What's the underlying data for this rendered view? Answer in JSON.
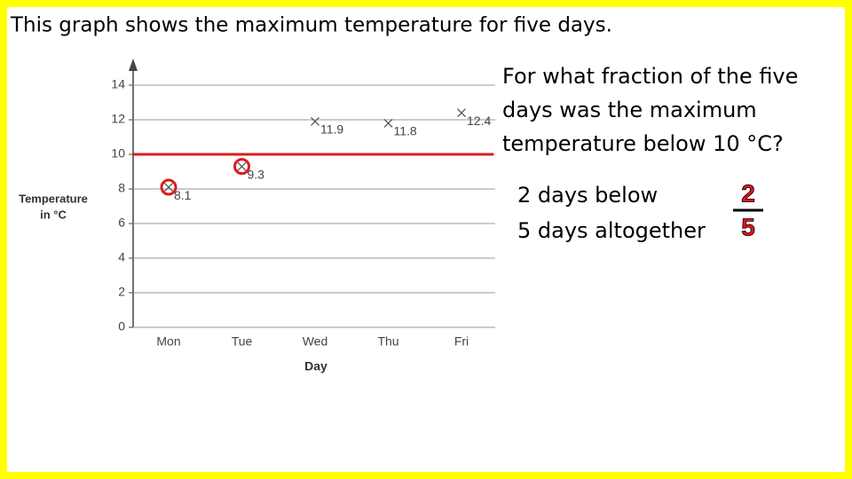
{
  "slide_title": "This graph shows the maximum temperature for five days.",
  "question": [
    "For what fraction of the five",
    "days was the maximum",
    "temperature below 10 °C?"
  ],
  "answer": [
    "2 days below",
    "5 days altogether"
  ],
  "fraction": {
    "numerator": 2,
    "denominator": 5,
    "color": "#e8101a"
  },
  "chart_data": {
    "type": "scatter",
    "categories": [
      "Mon",
      "Tue",
      "Wed",
      "Thu",
      "Fri"
    ],
    "values": [
      8.1,
      9.3,
      11.9,
      11.8,
      12.4
    ],
    "color": "#555555",
    "y_label": [
      "Temperature",
      "in °C"
    ],
    "x_label": "Day",
    "ylim": [
      0,
      14
    ],
    "yticks": [
      0,
      2,
      4,
      6,
      8,
      10,
      12,
      14
    ],
    "grid": true,
    "threshold": 10,
    "threshold_color": "#d81e1e"
  }
}
